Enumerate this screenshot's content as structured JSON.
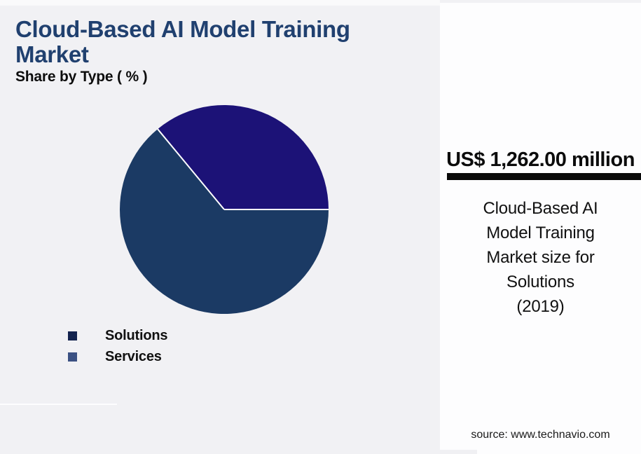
{
  "page": {
    "background": "#f1f1f4"
  },
  "header": {
    "title": "Cloud-Based AI Model Training Market",
    "title_color": "#20406f",
    "subtitle": "Share by Type ( % )"
  },
  "chart_data": {
    "type": "pie",
    "title": "Cloud-Based AI Model Training Market",
    "subtitle": "Share by Type ( % )",
    "unit": "%",
    "start_angle_deg": 0,
    "direction": "counterclockwise",
    "divider_color": "#ffffff",
    "slices": [
      {
        "label": "Services",
        "value": 36,
        "color": "#1c1277"
      },
      {
        "label": "Solutions",
        "value": 64,
        "color": "#1b3a64"
      }
    ],
    "legend": {
      "position": "bottom-left",
      "items": [
        {
          "label": "Solutions",
          "marker_color": "#13234e"
        },
        {
          "label": "Services",
          "marker_color": "#3b5183"
        }
      ]
    }
  },
  "highlight_panel": {
    "background": "#fdfdfe",
    "value": "US$ 1,262.00 million",
    "rule_color": "#0a0a0a",
    "description": "Cloud-Based AI\nModel Training\nMarket size for\nSolutions\n(2019)",
    "source": "source: www.technavio.com"
  }
}
